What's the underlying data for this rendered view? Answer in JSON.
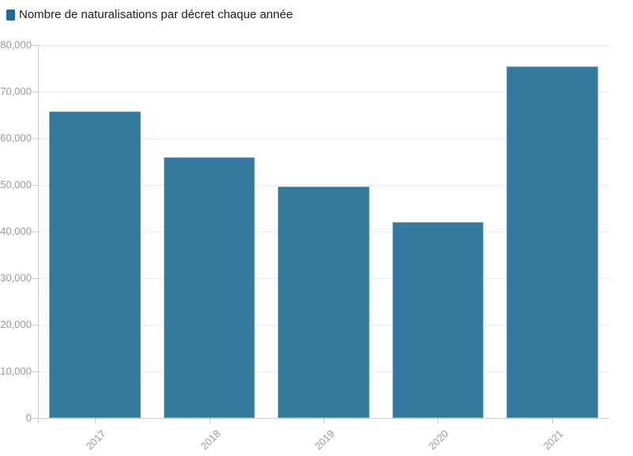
{
  "legend": {
    "label": "Nombre de naturalisations par décret chaque année"
  },
  "colors": {
    "bar": "#337a9e",
    "legend_swatch": "#1f6b94",
    "gridline": "#ebebeb",
    "axis": "#cccccc",
    "tick": "#c9c9c9",
    "axis_label_text": "#9b9b9b",
    "legend_text": "#1d1d1d",
    "background": "#ffffff"
  },
  "chart_data": {
    "type": "bar",
    "title": "Nombre de naturalisations par décret chaque année",
    "categories": [
      "2017",
      "2018",
      "2019",
      "2020",
      "2021"
    ],
    "values": [
      65700,
      55900,
      49700,
      42000,
      75500
    ],
    "series_name": "Nombre de naturalisations par décret chaque année",
    "xlabel": "",
    "ylabel": "",
    "ylim": [
      0,
      80000
    ],
    "ytick_interval": 10000,
    "ytick_labels": [
      "0",
      "10,000",
      "20,000",
      "30,000",
      "40,000",
      "50,000",
      "60,000",
      "70,000",
      "80,000"
    ],
    "grid": "horizontal",
    "legend_position": "top-left",
    "x_tick_label_rotation": -45,
    "y_tick_format": "thousands-comma"
  }
}
